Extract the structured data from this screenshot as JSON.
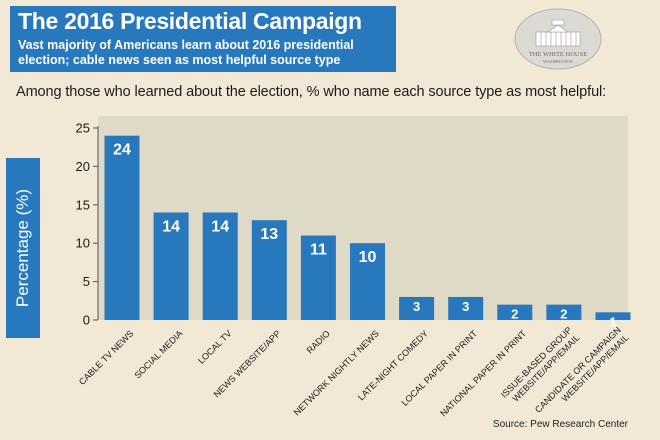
{
  "header": {
    "title": "The 2016 Presidential Campaign",
    "subtitle": "Vast majority of Americans learn about 2016 presidential election; cable news seen as most helpful source type"
  },
  "seal": {
    "line1": "THE WHITE HOUSE",
    "line2": "WASHINGTON"
  },
  "question": "Among those who learned about the election, % who name each source type as most helpful:",
  "source": "Source: Pew Research Center",
  "colors": {
    "bar": "#2778bd",
    "plot_bg": "#dfd9c7",
    "header": "#2778bd"
  },
  "chart_data": {
    "type": "bar",
    "title": "",
    "xlabel": "",
    "ylabel": "Percentage (%)",
    "ylim": [
      0,
      25
    ],
    "yticks": [
      0,
      5,
      10,
      15,
      20,
      25
    ],
    "grid": false,
    "categories": [
      "CABLE TV NEWS",
      "SOCIAL MEDIA",
      "LOCAL TV",
      "NEWS WEBSITE/APP",
      "RADIO",
      "NETWORK NIGHTLY NEWS",
      "LATE-NIGHT COMEDY",
      "LOCAL PAPER IN PRINT",
      "NATIONAL PAPER IN PRINT",
      "ISSUE-BASED GROUP WEBSITE/APP/EMAIL",
      "CANDIDATE OR CAMPAIGN WEBSITE/APP/EMAIL"
    ],
    "values": [
      24,
      14,
      14,
      13,
      11,
      10,
      3,
      3,
      2,
      2,
      1
    ],
    "data_labels": [
      "24",
      "14",
      "14",
      "13",
      "11",
      "10",
      "3",
      "3",
      "2",
      "2",
      "1"
    ]
  }
}
